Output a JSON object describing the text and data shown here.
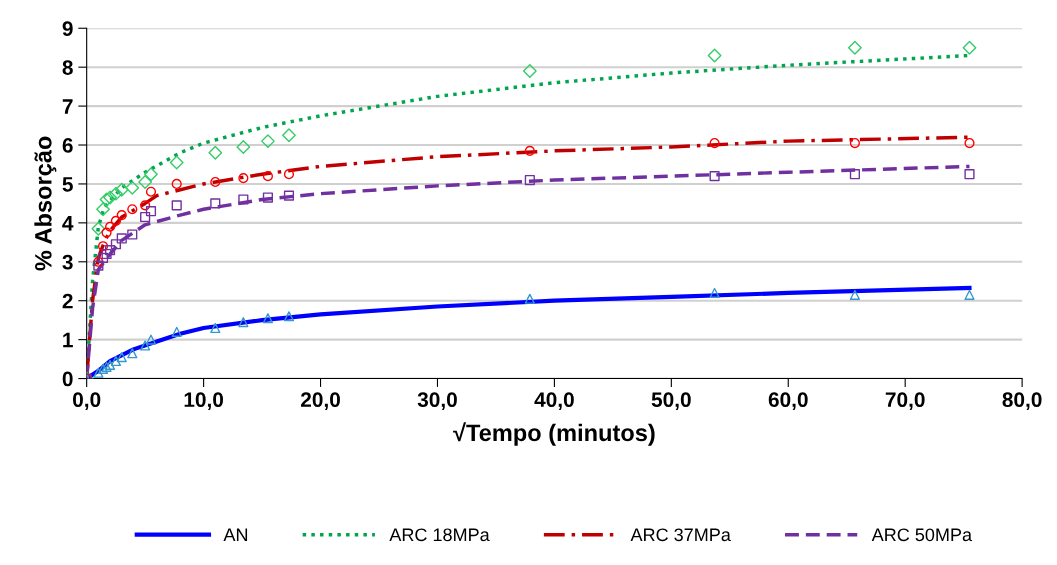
{
  "chart_data": {
    "type": "line",
    "xlabel": "√Tempo (minutos)",
    "ylabel": "% Absorção",
    "xlim": [
      0,
      80
    ],
    "ylim": [
      0,
      9
    ],
    "xticks": [
      {
        "value": 0,
        "label": "0,0"
      },
      {
        "value": 10,
        "label": "10,0"
      },
      {
        "value": 20,
        "label": "20,0"
      },
      {
        "value": 30,
        "label": "30,0"
      },
      {
        "value": 40,
        "label": "40,0"
      },
      {
        "value": 50,
        "label": "50,0"
      },
      {
        "value": 60,
        "label": "60,0"
      },
      {
        "value": 70,
        "label": "70,0"
      },
      {
        "value": 80,
        "label": "80,0"
      }
    ],
    "yticks": [
      0,
      1,
      2,
      3,
      4,
      5,
      6,
      7,
      8,
      9
    ],
    "grid": "y",
    "legend": "bottom",
    "series": [
      {
        "name": "AN",
        "color": "#0000ff",
        "line_style": "solid",
        "marker": "none",
        "x": [
          0,
          1,
          2,
          4,
          6,
          8,
          10,
          15,
          20,
          30,
          40,
          50,
          60,
          75.5
        ],
        "values": [
          0,
          0.2,
          0.45,
          0.75,
          0.95,
          1.15,
          1.3,
          1.5,
          1.65,
          1.85,
          2.0,
          2.1,
          2.2,
          2.33
        ]
      },
      {
        "name": "ARC 18MPa",
        "color": "#00a550",
        "line_style": "dotted",
        "marker": "none",
        "x": [
          0,
          0.5,
          1,
          1.5,
          3,
          5,
          8,
          10,
          15,
          20,
          30,
          40,
          50,
          60,
          75.5
        ],
        "values": [
          0,
          2.5,
          3.9,
          4.4,
          4.9,
          5.3,
          5.8,
          6.05,
          6.45,
          6.75,
          7.25,
          7.6,
          7.85,
          8.05,
          8.3
        ]
      },
      {
        "name": "ARC 37MPa",
        "color": "#c00000",
        "line_style": "dashdot",
        "marker": "none",
        "x": [
          0,
          0.5,
          1,
          1.5,
          2,
          3,
          5,
          6,
          10,
          15,
          20,
          30,
          40,
          50,
          60,
          75.5
        ],
        "values": [
          0,
          2.0,
          3.1,
          3.5,
          3.8,
          4.15,
          4.5,
          4.7,
          5.0,
          5.25,
          5.45,
          5.7,
          5.85,
          5.95,
          6.1,
          6.2
        ]
      },
      {
        "name": "ARC 50MPa",
        "color": "#7030a0",
        "line_style": "dashed",
        "marker": "none",
        "x": [
          0,
          0.5,
          1,
          2,
          3,
          5,
          8,
          10,
          15,
          20,
          30,
          40,
          50,
          60,
          75.5
        ],
        "values": [
          0,
          1.8,
          2.8,
          3.2,
          3.55,
          3.95,
          4.2,
          4.35,
          4.6,
          4.75,
          4.95,
          5.1,
          5.2,
          5.3,
          5.45
        ]
      },
      {
        "type": "scatter",
        "color": "#3399cc",
        "marker": "triangle",
        "x": [
          0,
          1,
          1.4,
          1.7,
          2,
          2.5,
          3,
          3.9,
          5,
          5.5,
          7.7,
          11,
          13.4,
          15.5,
          17.3,
          37.9,
          53.7,
          65.7,
          75.5
        ],
        "values": [
          0,
          0.15,
          0.25,
          0.3,
          0.35,
          0.45,
          0.55,
          0.65,
          0.85,
          1.0,
          1.2,
          1.3,
          1.45,
          1.55,
          1.6,
          2.05,
          2.2,
          2.15,
          2.15
        ]
      },
      {
        "type": "scatter",
        "color": "#33cc66",
        "marker": "diamond",
        "x": [
          0,
          1,
          1.4,
          1.7,
          2,
          2.5,
          3,
          3.9,
          5,
          5.5,
          7.7,
          11,
          13.4,
          15.5,
          17.3,
          37.9,
          53.7,
          65.7,
          75.5
        ],
        "values": [
          0,
          3.85,
          4.35,
          4.6,
          4.65,
          4.75,
          4.85,
          4.9,
          5.05,
          5.25,
          5.55,
          5.8,
          5.95,
          6.1,
          6.25,
          7.9,
          8.3,
          8.5,
          8.5
        ]
      },
      {
        "type": "scatter",
        "color": "#ff0000",
        "marker": "circle",
        "x": [
          0,
          1,
          1.4,
          1.7,
          2,
          2.5,
          3,
          3.9,
          5,
          5.5,
          7.7,
          11,
          13.4,
          15.5,
          17.3,
          37.9,
          53.7,
          65.7,
          75.5
        ],
        "values": [
          0,
          3.0,
          3.4,
          3.75,
          3.9,
          4.05,
          4.2,
          4.35,
          4.45,
          4.8,
          5.0,
          5.05,
          5.15,
          5.2,
          5.25,
          5.85,
          6.05,
          6.05,
          6.05
        ]
      },
      {
        "type": "scatter",
        "color": "#7030a0",
        "marker": "square",
        "x": [
          0,
          1,
          1.4,
          1.7,
          2,
          2.5,
          3,
          3.9,
          5,
          5.5,
          7.7,
          11,
          13.4,
          15.5,
          17.3,
          37.9,
          53.7,
          65.7,
          75.5
        ],
        "values": [
          0,
          2.9,
          3.1,
          3.2,
          3.3,
          3.45,
          3.6,
          3.7,
          4.15,
          4.3,
          4.45,
          4.5,
          4.6,
          4.65,
          4.7,
          5.1,
          5.2,
          5.25,
          5.25
        ]
      }
    ]
  }
}
